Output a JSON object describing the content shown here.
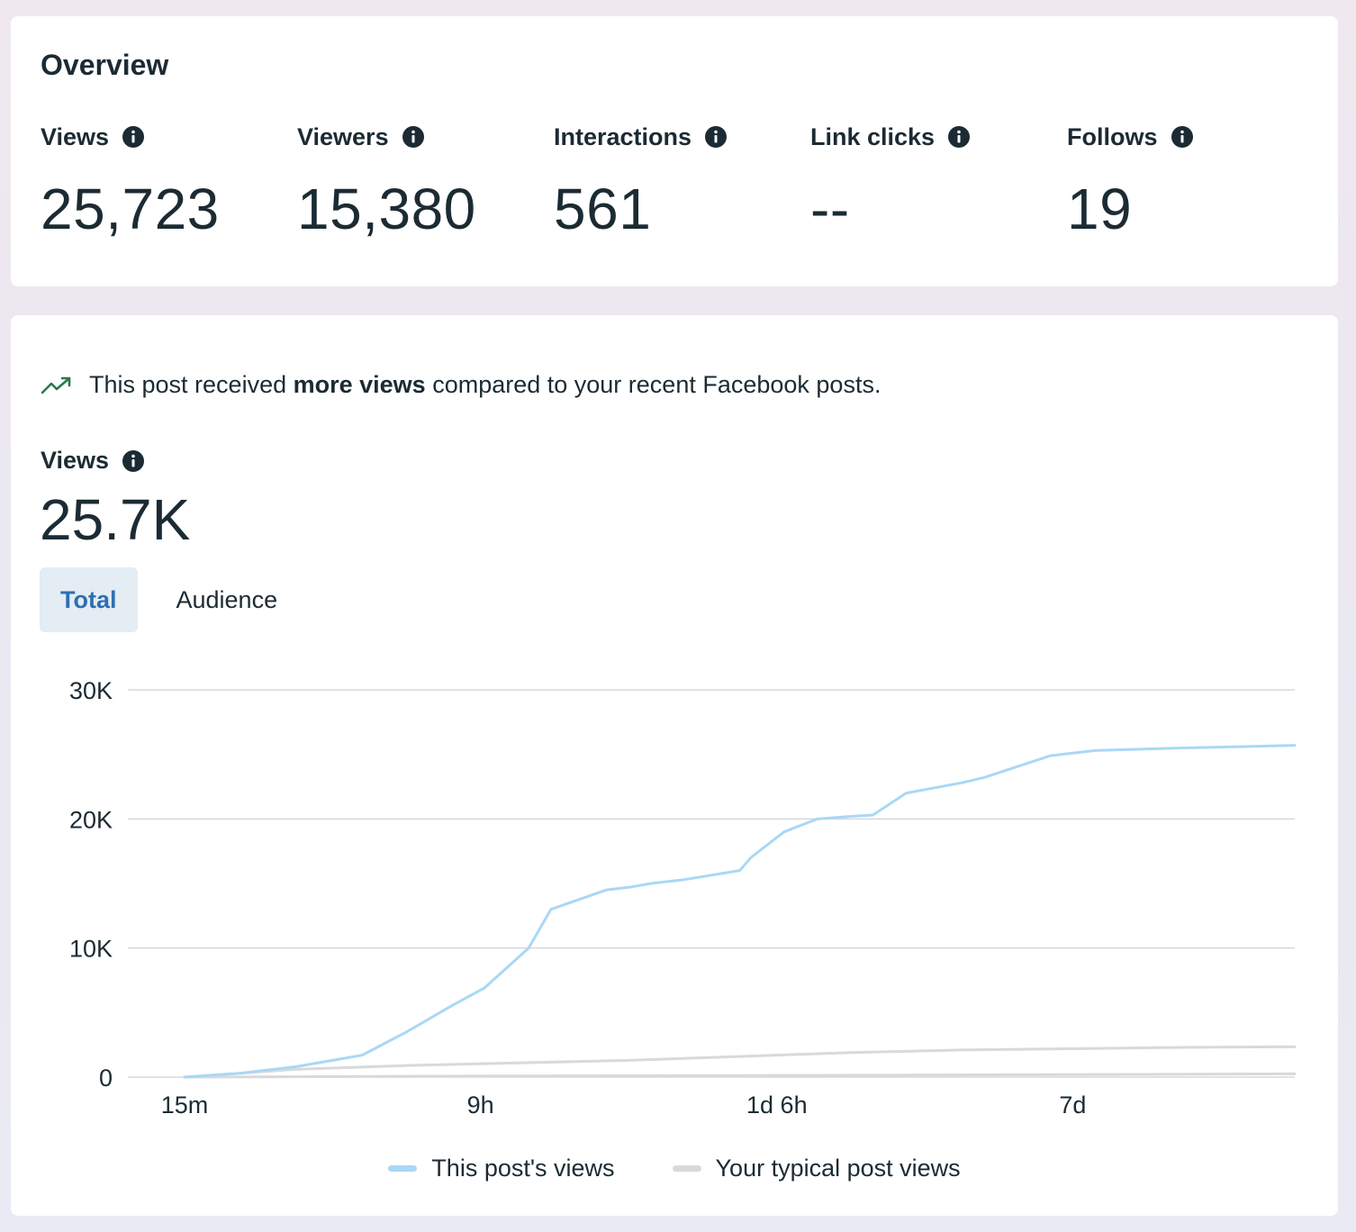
{
  "overview": {
    "title": "Overview",
    "metrics": [
      {
        "label": "Views",
        "value": "25,723"
      },
      {
        "label": "Viewers",
        "value": "15,380"
      },
      {
        "label": "Interactions",
        "value": "561"
      },
      {
        "label": "Link clicks",
        "value": "--"
      },
      {
        "label": "Follows",
        "value": "19"
      }
    ]
  },
  "insight": {
    "prefix": "This post received ",
    "highlight": "more views",
    "suffix": " compared to your recent Facebook posts."
  },
  "views_section": {
    "label": "Views",
    "value": "25.7K"
  },
  "tabs": [
    {
      "label": "Total",
      "active": true
    },
    {
      "label": "Audience",
      "active": false
    }
  ],
  "colors": {
    "accent": "#2e6fb3",
    "this_post": "#a9d8f5",
    "typical": "#d9d9dc",
    "trend": "#2b7a4b"
  },
  "chart_data": {
    "type": "line",
    "x_tick_labels": [
      "15m",
      "9h",
      "1d 6h",
      "7d"
    ],
    "x_tick_positions": [
      0,
      0.2665,
      0.5335,
      0.8
    ],
    "ylim": [
      0,
      30000
    ],
    "y_ticks": [
      0,
      10000,
      20000,
      30000
    ],
    "y_tick_labels": [
      "0",
      "10K",
      "20K",
      "30K"
    ],
    "grid": true,
    "legend_position": "bottom-center",
    "series": [
      {
        "name": "This post's views",
        "x": [
          0,
          0.05,
          0.1,
          0.16,
          0.2,
          0.24,
          0.27,
          0.31,
          0.33,
          0.37,
          0.38,
          0.4,
          0.42,
          0.45,
          0.5,
          0.51,
          0.54,
          0.57,
          0.6,
          0.62,
          0.65,
          0.7,
          0.72,
          0.78,
          0.82,
          0.9,
          1.0
        ],
        "values": [
          0,
          300,
          800,
          1700,
          3500,
          5500,
          6900,
          10000,
          13000,
          14200,
          14500,
          14700,
          15000,
          15300,
          16000,
          17000,
          19000,
          20000,
          20200,
          20300,
          22000,
          22800,
          23200,
          24900,
          25300,
          25500,
          25700
        ]
      },
      {
        "name": "Your typical post views",
        "x": [
          0,
          0.1,
          0.2,
          0.3,
          0.4,
          0.5,
          0.6,
          0.7,
          0.8,
          0.9,
          1.0
        ],
        "values": [
          0,
          600,
          900,
          1100,
          1300,
          1600,
          1900,
          2100,
          2200,
          2300,
          2350
        ]
      },
      {
        "name": "Your typical post views (low)",
        "x": [
          0,
          0.25,
          0.5,
          0.75,
          1.0
        ],
        "values": [
          0,
          80,
          120,
          180,
          250
        ]
      }
    ],
    "legend": [
      "This post's views",
      "Your typical post views"
    ]
  }
}
